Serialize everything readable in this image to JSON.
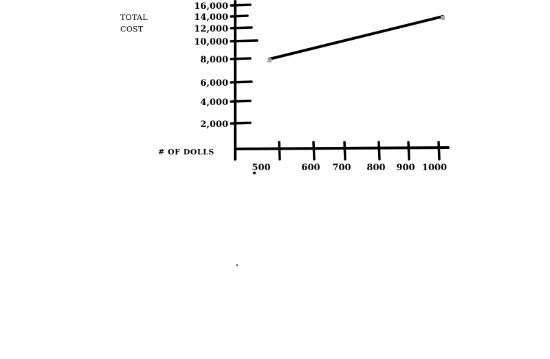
{
  "chart_data": {
    "type": "line",
    "title": "",
    "ylabel_lines": [
      "TOTAL",
      "COST"
    ],
    "xlabel": "# OF DOLLS",
    "y_ticks": [
      {
        "label": "16,000",
        "value": 16000
      },
      {
        "label": "14,000",
        "value": 14000
      },
      {
        "label": "12,000",
        "value": 12000
      },
      {
        "label": "10,000",
        "value": 10000
      },
      {
        "label": "8,000",
        "value": 8000
      },
      {
        "label": "6,000",
        "value": 6000
      },
      {
        "label": "4,000",
        "value": 4000
      },
      {
        "label": "2,000",
        "value": 2000
      }
    ],
    "x_ticks": [
      {
        "label": "500",
        "value": 500
      },
      {
        "label": "600",
        "value": 600
      },
      {
        "label": "700",
        "value": 700
      },
      {
        "label": "800",
        "value": 800
      },
      {
        "label": "900",
        "value": 900
      },
      {
        "label": "1000",
        "value": 1000
      }
    ],
    "series": [
      {
        "x": [
          500,
          1000
        ],
        "y": [
          8000,
          14000
        ]
      }
    ],
    "grid": false,
    "legend": "none",
    "colors": {
      "line": "#000000",
      "axis": "#000000",
      "point": "#aaaaaa"
    }
  }
}
